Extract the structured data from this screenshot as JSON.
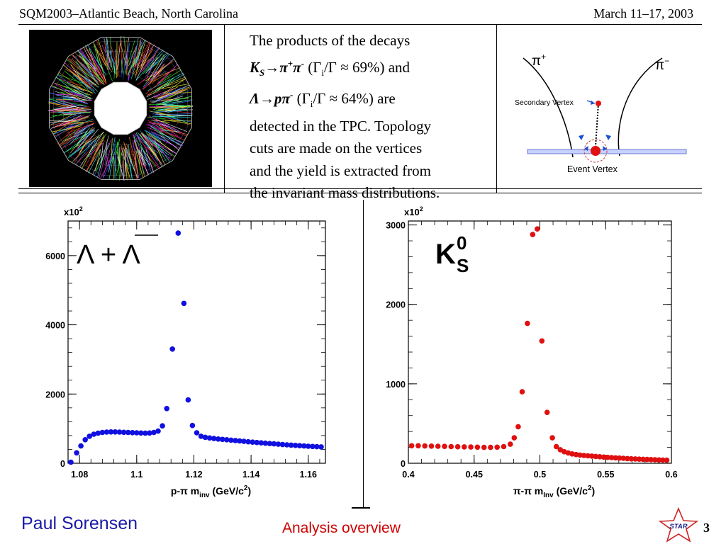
{
  "header": {
    "left": "SQM2003–Atlantic Beach, North Carolina",
    "right": "March 11–17, 2003"
  },
  "description": {
    "l1": "The products of the decays",
    "ks": "K",
    "ks_sub": "S",
    "ks_decay": "→π",
    "ks_plus": "+",
    "ks_pi2": "π",
    "ks_minus": "-",
    "ks_br_open": " (Γ",
    "ks_br_i": "i",
    "ks_br_close": "/Γ ≈ 69%) and",
    "lam": "Λ",
    "lam_decay": "→pπ",
    "lam_minus": "-",
    "lam_br_open": " (Γ",
    "lam_br_i": "i",
    "lam_br_close": "/Γ ≈ 64%) are",
    "l4": "detected in the TPC.  Topology",
    "l5": "cuts are made on the vertices",
    "l6": "and the yield is extracted from",
    "l7": "the invariant mass distributions."
  },
  "topology": {
    "pi_plus": "π",
    "pi_plus_sup": "+",
    "pi_minus": "π",
    "pi_minus_sup": "−",
    "secondary_vertex": "Secondary Vertex",
    "event_vertex": "Event Vertex"
  },
  "footer": {
    "author": "Paul Sorensen",
    "title": "Analysis overview",
    "logo_text": "STAR",
    "page": "3"
  },
  "colors": {
    "lambda_marker": "#1010e0",
    "k0s_marker": "#e01010",
    "footer_name": "#1a1aa8",
    "footer_title": "#cc0000"
  },
  "chart_data": [
    {
      "type": "scatter",
      "label_main": "Λ + Λ",
      "multiplier": "x10",
      "multiplier_exp": "2",
      "xlabel": "p-π m",
      "xlabel_sub": "inv",
      "xlabel_unit": " (GeV/c",
      "xlabel_unit_sup": "2",
      "xlabel_close": ")",
      "xlim": [
        1.076,
        1.166
      ],
      "ylim": [
        0,
        7000
      ],
      "xticks": [
        "1.08",
        "1.1",
        "1.12",
        "1.14",
        "1.16"
      ],
      "xtick_values": [
        1.08,
        1.1,
        1.12,
        1.14,
        1.16
      ],
      "yticks": [
        "0",
        "2000",
        "4000",
        "6000"
      ],
      "ytick_values": [
        0,
        2000,
        4000,
        6000
      ],
      "color": "#1010e0",
      "points": [
        [
          1.077,
          30
        ],
        [
          1.079,
          300
        ],
        [
          1.0805,
          500
        ],
        [
          1.082,
          680
        ],
        [
          1.0835,
          780
        ],
        [
          1.085,
          840
        ],
        [
          1.0865,
          870
        ],
        [
          1.088,
          890
        ],
        [
          1.0895,
          900
        ],
        [
          1.091,
          905
        ],
        [
          1.0925,
          905
        ],
        [
          1.094,
          900
        ],
        [
          1.0955,
          895
        ],
        [
          1.097,
          890
        ],
        [
          1.0985,
          885
        ],
        [
          1.1,
          880
        ],
        [
          1.1015,
          875
        ],
        [
          1.103,
          870
        ],
        [
          1.1045,
          875
        ],
        [
          1.106,
          890
        ],
        [
          1.1075,
          930
        ],
        [
          1.109,
          1080
        ],
        [
          1.1105,
          1580
        ],
        [
          1.1125,
          3300
        ],
        [
          1.1145,
          6650
        ],
        [
          1.1165,
          4620
        ],
        [
          1.118,
          1830
        ],
        [
          1.1195,
          1090
        ],
        [
          1.121,
          880
        ],
        [
          1.1225,
          780
        ],
        [
          1.124,
          750
        ],
        [
          1.1255,
          730
        ],
        [
          1.127,
          715
        ],
        [
          1.1285,
          700
        ],
        [
          1.13,
          690
        ],
        [
          1.1315,
          680
        ],
        [
          1.133,
          668
        ],
        [
          1.1345,
          656
        ],
        [
          1.136,
          644
        ],
        [
          1.1375,
          632
        ],
        [
          1.139,
          620
        ],
        [
          1.1405,
          610
        ],
        [
          1.142,
          600
        ],
        [
          1.1435,
          590
        ],
        [
          1.145,
          580
        ],
        [
          1.1465,
          570
        ],
        [
          1.148,
          560
        ],
        [
          1.1495,
          550
        ],
        [
          1.151,
          540
        ],
        [
          1.1525,
          532
        ],
        [
          1.154,
          524
        ],
        [
          1.1555,
          516
        ],
        [
          1.157,
          508
        ],
        [
          1.1585,
          500
        ],
        [
          1.16,
          492
        ],
        [
          1.1615,
          485
        ],
        [
          1.163,
          478
        ],
        [
          1.1645,
          472
        ]
      ]
    },
    {
      "type": "scatter",
      "label_main": "K",
      "label_sup": "0",
      "label_sub": "S",
      "multiplier": "x10",
      "multiplier_exp": "2",
      "xlabel": "π-π m",
      "xlabel_sub": "Inv",
      "xlabel_unit": " (GeV/c",
      "xlabel_unit_sup": "2",
      "xlabel_close": ")",
      "xlim": [
        0.4,
        0.6
      ],
      "ylim": [
        0,
        3050
      ],
      "xticks": [
        "0.4",
        "0.45",
        "0.5",
        "0.55",
        "0.6"
      ],
      "xtick_values": [
        0.4,
        0.45,
        0.5,
        0.55,
        0.6
      ],
      "yticks": [
        "0",
        "1000",
        "2000",
        "3000"
      ],
      "ytick_values": [
        0,
        1000,
        2000,
        3000
      ],
      "color": "#e01010",
      "points": [
        [
          0.4025,
          220
        ],
        [
          0.4075,
          220
        ],
        [
          0.4125,
          218
        ],
        [
          0.4175,
          216
        ],
        [
          0.4225,
          214
        ],
        [
          0.4275,
          212
        ],
        [
          0.4325,
          210
        ],
        [
          0.4375,
          208
        ],
        [
          0.4425,
          206
        ],
        [
          0.4475,
          204
        ],
        [
          0.4525,
          202
        ],
        [
          0.4575,
          200
        ],
        [
          0.4625,
          200
        ],
        [
          0.4675,
          202
        ],
        [
          0.4725,
          210
        ],
        [
          0.4775,
          240
        ],
        [
          0.4805,
          320
        ],
        [
          0.4835,
          460
        ],
        [
          0.4865,
          900
        ],
        [
          0.4905,
          1760
        ],
        [
          0.4945,
          2880
        ],
        [
          0.498,
          2950
        ],
        [
          0.5015,
          1540
        ],
        [
          0.5055,
          640
        ],
        [
          0.5095,
          320
        ],
        [
          0.5125,
          210
        ],
        [
          0.5155,
          170
        ],
        [
          0.5185,
          145
        ],
        [
          0.5215,
          130
        ],
        [
          0.5245,
          118
        ],
        [
          0.5275,
          110
        ],
        [
          0.5305,
          103
        ],
        [
          0.5335,
          98
        ],
        [
          0.5365,
          94
        ],
        [
          0.5395,
          90
        ],
        [
          0.5425,
          86
        ],
        [
          0.5455,
          82
        ],
        [
          0.5485,
          78
        ],
        [
          0.5515,
          74
        ],
        [
          0.5545,
          71
        ],
        [
          0.5575,
          68
        ],
        [
          0.5605,
          65
        ],
        [
          0.5635,
          62
        ],
        [
          0.5665,
          59
        ],
        [
          0.5695,
          56
        ],
        [
          0.5725,
          54
        ],
        [
          0.5755,
          52
        ],
        [
          0.5785,
          50
        ],
        [
          0.5815,
          48
        ],
        [
          0.5845,
          46
        ],
        [
          0.5875,
          44
        ],
        [
          0.5905,
          42
        ],
        [
          0.5935,
          40
        ],
        [
          0.5965,
          38
        ]
      ]
    }
  ]
}
